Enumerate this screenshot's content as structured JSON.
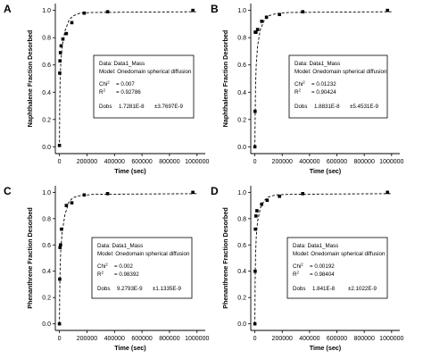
{
  "panels": [
    {
      "letter": "A",
      "ylabel": "Naphthalene Fraction Desorbed",
      "xlabel": "Time (sec)",
      "box": {
        "line1": "Data: Data1_Mass",
        "line2": "Model: Onedomain spherical diffusion",
        "chi_label": "Chi",
        "chi_sup": "2",
        "chi_value": "= 0.007",
        "r2_label": "R",
        "r2_sup": "2",
        "r2_value": "= 0.92786",
        "dobs_label": "Dobs",
        "dobs_value": "1.7281E-8",
        "dobs_err": "±3.7697E-9"
      }
    },
    {
      "letter": "B",
      "ylabel": "Naphthalene Fraction Desorbed",
      "xlabel": "Time (sec)",
      "box": {
        "line1": "Data: Data1_Mass",
        "line2": "Model: Onedomain spherical diffusion",
        "chi_label": "Chi",
        "chi_sup": "2",
        "chi_value": "= 0.01232",
        "r2_label": "R",
        "r2_sup": "2",
        "r2_value": "= 0.90424",
        "dobs_label": "Dobs",
        "dobs_value": "1.8831E-8",
        "dobs_err": "±5.4531E-9"
      }
    },
    {
      "letter": "C",
      "ylabel": "Phenanthrene Fraction Desorbed",
      "xlabel": "Time (sec)",
      "box": {
        "line1": "Data: Data1_Mass",
        "line2": "Model: Onedomain spherical diffusion",
        "chi_label": "Chi",
        "chi_sup": "2",
        "chi_value": "= 0.002",
        "r2_label": "R",
        "r2_sup": "2",
        "r2_value": "= 0.98392",
        "dobs_label": "Dobs",
        "dobs_value": "9.2793E-9",
        "dobs_err": "±1.1335E-9"
      }
    },
    {
      "letter": "D",
      "ylabel": "Phenanthrene Fraction Desorbed",
      "xlabel": "Time (sec)",
      "box": {
        "line1": "Data: Data1_Mass",
        "line2": "Model: Onedomain spherical diffusion",
        "chi_label": "Chi",
        "chi_sup": "2",
        "chi_value": "= 0.00192",
        "r2_label": "R",
        "r2_sup": "2",
        "r2_value": "= 0.98404",
        "dobs_label": "Dobs",
        "dobs_value": "1.841E-8",
        "dobs_err": "±2.1022E-9"
      }
    }
  ],
  "chart_data": [
    {
      "type": "scatter",
      "panel": "A",
      "xlabel": "Time (sec)",
      "ylabel": "Naphthalene Fraction Desorbed",
      "xlim": [
        -30000,
        1060000
      ],
      "ylim": [
        -0.05,
        1.05
      ],
      "xticks": [
        0,
        200000,
        400000,
        600000,
        800000,
        1000000
      ],
      "yticks": [
        0.0,
        0.2,
        0.4,
        0.6,
        0.8,
        1.0
      ],
      "xtick_labels": [
        "0",
        "200000",
        "400000",
        "600000",
        "800000",
        "1000000"
      ],
      "ytick_labels": [
        "0.0",
        "0.2",
        "0.4",
        "0.6",
        "0.8",
        "1.0"
      ],
      "points": [
        [
          0,
          0.01
        ],
        [
          2000,
          0.54
        ],
        [
          4000,
          0.63
        ],
        [
          7000,
          0.69
        ],
        [
          12000,
          0.74
        ],
        [
          25000,
          0.79
        ],
        [
          50000,
          0.83
        ],
        [
          90000,
          0.91
        ],
        [
          180000,
          0.98
        ],
        [
          350000,
          0.99
        ],
        [
          970000,
          1.0
        ]
      ],
      "fit": [
        [
          0,
          0.0
        ],
        [
          2000,
          0.3
        ],
        [
          5000,
          0.5
        ],
        [
          10000,
          0.62
        ],
        [
          20000,
          0.74
        ],
        [
          40000,
          0.85
        ],
        [
          70000,
          0.93
        ],
        [
          100000,
          0.96
        ],
        [
          150000,
          0.98
        ],
        [
          250000,
          0.985
        ],
        [
          1000000,
          0.99
        ]
      ]
    },
    {
      "type": "scatter",
      "panel": "B",
      "xlabel": "Time (sec)",
      "ylabel": "Naphthalene Fraction Desorbed",
      "xlim": [
        -30000,
        1060000
      ],
      "ylim": [
        -0.05,
        1.05
      ],
      "xticks": [
        0,
        200000,
        400000,
        600000,
        800000,
        1000000
      ],
      "yticks": [
        0.0,
        0.2,
        0.4,
        0.6,
        0.8,
        1.0
      ],
      "xtick_labels": [
        "0",
        "200000",
        "400000",
        "600000",
        "800000",
        "1000000"
      ],
      "ytick_labels": [
        "0.0",
        "0.2",
        "0.4",
        "0.6",
        "0.8",
        "1.0"
      ],
      "points": [
        [
          0,
          0.0
        ],
        [
          1500,
          0.26
        ],
        [
          3000,
          0.84
        ],
        [
          8000,
          0.84
        ],
        [
          20000,
          0.86
        ],
        [
          50000,
          0.92
        ],
        [
          85000,
          0.95
        ],
        [
          180000,
          0.97
        ],
        [
          350000,
          0.99
        ],
        [
          970000,
          1.0
        ]
      ],
      "fit": [
        [
          0,
          0.0
        ],
        [
          2000,
          0.2
        ],
        [
          5000,
          0.45
        ],
        [
          10000,
          0.6
        ],
        [
          20000,
          0.74
        ],
        [
          40000,
          0.86
        ],
        [
          70000,
          0.93
        ],
        [
          100000,
          0.96
        ],
        [
          150000,
          0.975
        ],
        [
          250000,
          0.985
        ],
        [
          1000000,
          0.99
        ]
      ]
    },
    {
      "type": "scatter",
      "panel": "C",
      "xlabel": "Time (sec)",
      "ylabel": "Phenanthrene Fraction Desorbed",
      "xlim": [
        -30000,
        1060000
      ],
      "ylim": [
        -0.05,
        1.05
      ],
      "xticks": [
        0,
        200000,
        400000,
        600000,
        800000,
        1000000
      ],
      "yticks": [
        0.0,
        0.2,
        0.4,
        0.6,
        0.8,
        1.0
      ],
      "xtick_labels": [
        "0",
        "200000",
        "400000",
        "600000",
        "800000",
        "1000000"
      ],
      "ytick_labels": [
        "0.0",
        "0.2",
        "0.4",
        "0.6",
        "0.8",
        "1.0"
      ],
      "points": [
        [
          0,
          0.0
        ],
        [
          2000,
          0.34
        ],
        [
          4000,
          0.58
        ],
        [
          8000,
          0.6
        ],
        [
          15000,
          0.72
        ],
        [
          50000,
          0.9
        ],
        [
          90000,
          0.92
        ],
        [
          180000,
          0.98
        ],
        [
          350000,
          0.99
        ],
        [
          970000,
          1.0
        ]
      ],
      "fit": [
        [
          0,
          0.0
        ],
        [
          2000,
          0.25
        ],
        [
          5000,
          0.43
        ],
        [
          10000,
          0.57
        ],
        [
          20000,
          0.7
        ],
        [
          40000,
          0.83
        ],
        [
          70000,
          0.93
        ],
        [
          100000,
          0.96
        ],
        [
          150000,
          0.975
        ],
        [
          250000,
          0.985
        ],
        [
          1000000,
          0.99
        ]
      ]
    },
    {
      "type": "scatter",
      "panel": "D",
      "xlabel": "Time (sec)",
      "ylabel": "Phenanthrene Fraction Desorbed",
      "xlim": [
        -30000,
        1060000
      ],
      "ylim": [
        -0.05,
        1.05
      ],
      "xticks": [
        0,
        200000,
        400000,
        600000,
        800000,
        1000000
      ],
      "yticks": [
        0.0,
        0.2,
        0.4,
        0.6,
        0.8,
        1.0
      ],
      "xtick_labels": [
        "0",
        "200000",
        "400000",
        "600000",
        "800000",
        "1000000"
      ],
      "ytick_labels": [
        "0.0",
        "0.2",
        "0.4",
        "0.6",
        "0.8",
        "1.0"
      ],
      "points": [
        [
          0,
          0.0
        ],
        [
          2000,
          0.4
        ],
        [
          4000,
          0.72
        ],
        [
          8000,
          0.82
        ],
        [
          15000,
          0.86
        ],
        [
          50000,
          0.91
        ],
        [
          90000,
          0.94
        ],
        [
          180000,
          0.97
        ],
        [
          350000,
          0.99
        ],
        [
          970000,
          1.0
        ]
      ],
      "fit": [
        [
          0,
          0.0
        ],
        [
          2000,
          0.32
        ],
        [
          5000,
          0.52
        ],
        [
          10000,
          0.66
        ],
        [
          20000,
          0.78
        ],
        [
          40000,
          0.88
        ],
        [
          70000,
          0.94
        ],
        [
          100000,
          0.965
        ],
        [
          150000,
          0.98
        ],
        [
          250000,
          0.985
        ],
        [
          1000000,
          0.99
        ]
      ]
    }
  ]
}
